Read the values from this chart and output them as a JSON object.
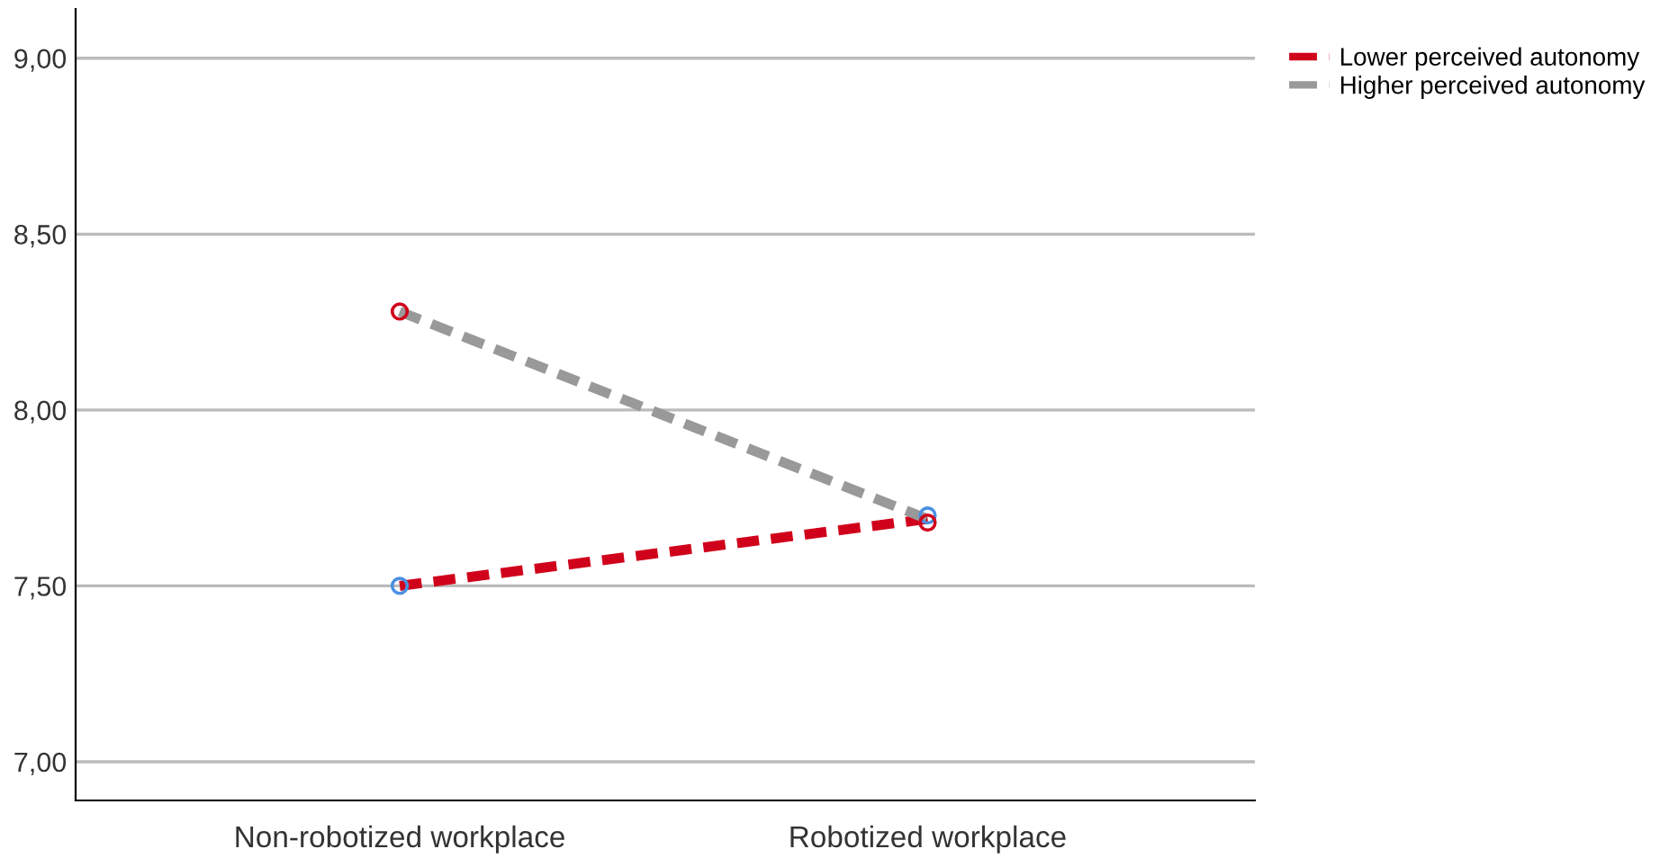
{
  "chart_data": {
    "type": "line",
    "categories": [
      "Non-robotized workplace",
      "Robotized workplace"
    ],
    "series": [
      {
        "name": "Lower perceived autonomy",
        "color": "#d0021b",
        "values": [
          7.5,
          7.69
        ],
        "line_style": "dashed"
      },
      {
        "name": "Higher perceived autonomy",
        "color": "#999999",
        "values": [
          8.28,
          7.69
        ],
        "line_style": "dashed"
      },
      {
        "type": "scatter",
        "color": "#4a90e2",
        "values": [
          7.5,
          7.7
        ],
        "marker": "circle"
      },
      {
        "type": "scatter",
        "color": "#d0021b",
        "values": [
          8.28,
          7.68
        ],
        "marker": "circle"
      }
    ],
    "ylim": [
      6.89,
      9.14
    ],
    "yticks": [
      {
        "value": 7,
        "label": "7,00"
      },
      {
        "value": 7.5,
        "label": "7,50"
      },
      {
        "value": 8,
        "label": "8,00"
      },
      {
        "value": 8.5,
        "label": "8,50"
      },
      {
        "value": 9,
        "label": "9,00"
      }
    ],
    "grid": "y",
    "legend": "top right"
  }
}
